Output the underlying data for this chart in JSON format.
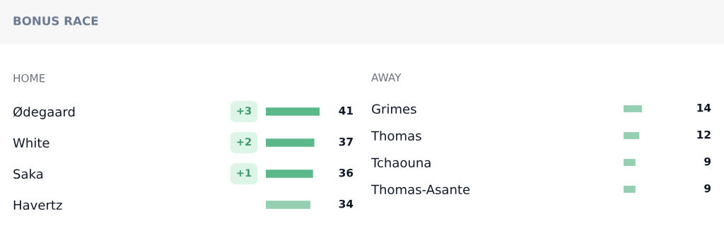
{
  "chart_data": [
    {
      "type": "bar",
      "orientation": "horizontal",
      "title": "HOME",
      "annotations": [
        "BONUS RACE",
        "+3",
        "+2",
        "+1"
      ],
      "categories": [
        "Ødegaard",
        "White",
        "Saka",
        "Havertz"
      ],
      "values": [
        41,
        37,
        36,
        34
      ],
      "colors": [
        "#5bb88a",
        "#5bb88a",
        "#5bb88a",
        "#93cfb0"
      ],
      "data_labels": true,
      "tick_labels": "y",
      "grid": false,
      "legend": false
    },
    {
      "type": "bar",
      "orientation": "horizontal",
      "title": "AWAY",
      "categories": [
        "Grimes",
        "Thomas",
        "Tchaouna",
        "Thomas-Asante"
      ],
      "values": [
        14,
        12,
        9,
        9
      ],
      "colors": [
        "#93cfb0",
        "#93cfb0",
        "#93cfb0",
        "#93cfb0"
      ],
      "data_labels": true,
      "tick_labels": "y",
      "grid": false,
      "legend": false
    }
  ]
}
